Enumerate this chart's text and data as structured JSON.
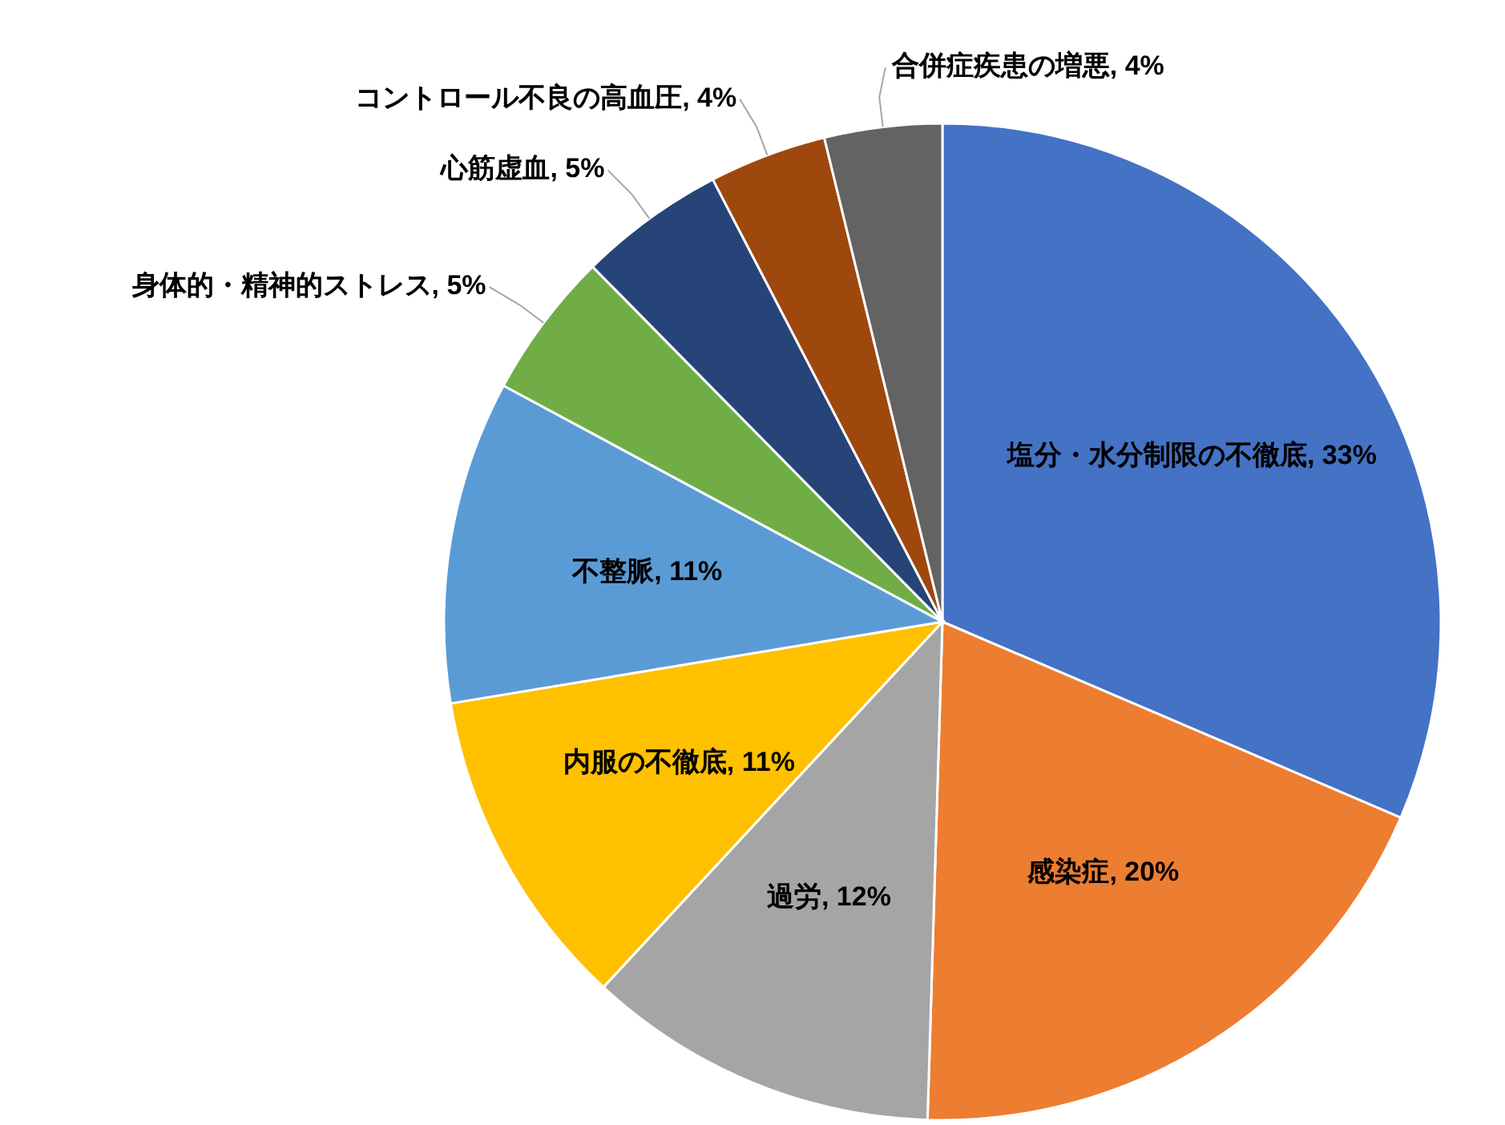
{
  "chart_data": {
    "type": "pie",
    "categories": [
      "塩分・水分制限の不徹底",
      "感染症",
      "過労",
      "内服の不徹底",
      "不整脈",
      "身体的・精神的ストレス",
      "心筋虚血",
      "コントロール不良の高血圧",
      "合併症疾患の増悪"
    ],
    "values": [
      33,
      20,
      12,
      11,
      11,
      5,
      5,
      4,
      4
    ],
    "value_labels": [
      "33%",
      "20%",
      "12%",
      "11%",
      "11%",
      "5%",
      "5%",
      "4%",
      "4%"
    ],
    "colors": [
      "#4472c4",
      "#ed7d31",
      "#a5a5a5",
      "#ffc000",
      "#5b9bd5",
      "#70ad47",
      "#264478",
      "#9e480e",
      "#636363"
    ]
  }
}
